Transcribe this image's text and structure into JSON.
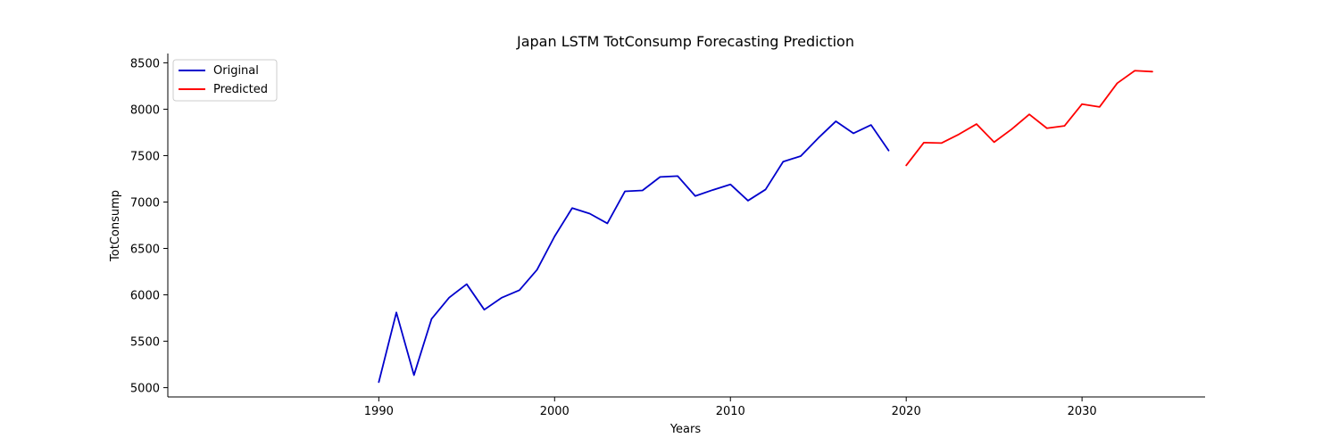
{
  "chart_data": {
    "type": "line",
    "title": "Japan LSTM TotConsump Forecasting Prediction",
    "xlabel": "Years",
    "ylabel": "TotConsump",
    "xlim": [
      1978,
      2037
    ],
    "ylim": [
      4900,
      8600
    ],
    "x_ticks": [
      1990,
      2000,
      2010,
      2020,
      2030
    ],
    "y_ticks": [
      5000,
      5500,
      6000,
      6500,
      7000,
      7500,
      8000,
      8500
    ],
    "grid": false,
    "legend_position": "upper-left",
    "series": [
      {
        "name": "Original",
        "color": "#0000cc",
        "x": [
          1990,
          1991,
          1992,
          1993,
          1994,
          1995,
          1996,
          1997,
          1998,
          1999,
          2000,
          2001,
          2002,
          2003,
          2004,
          2005,
          2006,
          2007,
          2008,
          2009,
          2010,
          2011,
          2012,
          2013,
          2014,
          2015,
          2016,
          2017,
          2018,
          2019
        ],
        "y": [
          5060,
          5810,
          5135,
          5740,
          5970,
          6115,
          5840,
          5970,
          6050,
          6270,
          6630,
          6935,
          6875,
          6770,
          7115,
          7125,
          7270,
          7280,
          7065,
          7130,
          7190,
          7015,
          7135,
          7435,
          7495,
          7690,
          7870,
          7740,
          7830,
          7555
        ]
      },
      {
        "name": "Predicted",
        "color": "#ff0000",
        "x": [
          2020,
          2021,
          2022,
          2023,
          2024,
          2025,
          2026,
          2027,
          2028,
          2029,
          2030,
          2031,
          2032,
          2033,
          2034
        ],
        "y": [
          7395,
          7640,
          7635,
          7730,
          7840,
          7645,
          7785,
          7945,
          7795,
          7820,
          8055,
          8025,
          8280,
          8415,
          8405
        ]
      }
    ]
  }
}
